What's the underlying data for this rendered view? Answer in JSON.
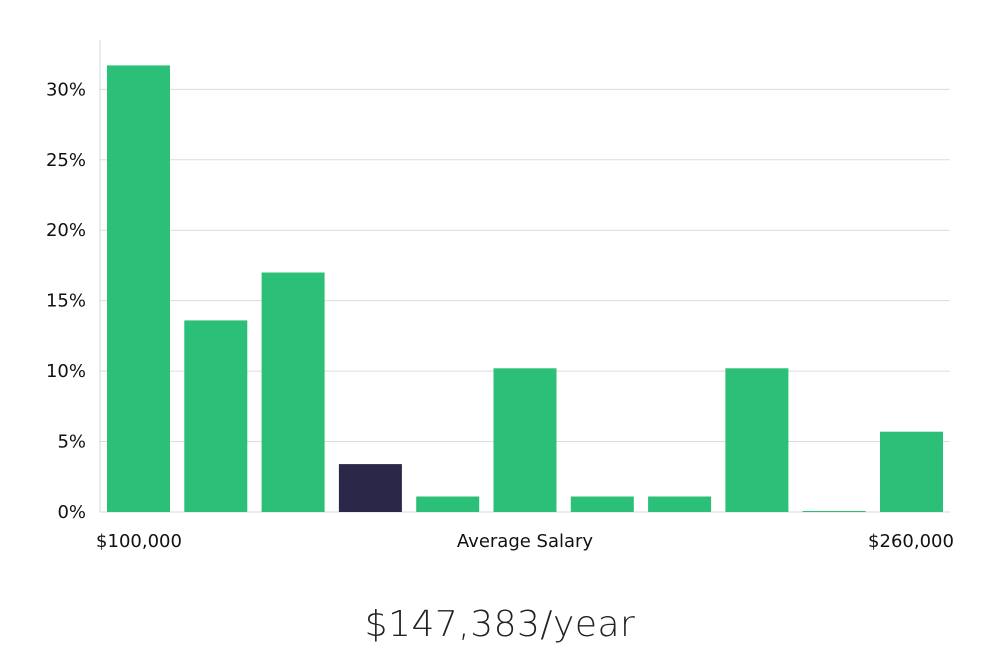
{
  "colors": {
    "bar": "#2bbf78",
    "highlight": "#2b2748",
    "grid": "#dcdcdc",
    "axis": "#d9d9d9",
    "text": "#111111"
  },
  "chart_data": {
    "type": "bar",
    "y_tick_labels": [
      "0%",
      "5%",
      "10%",
      "15%",
      "20%",
      "25%",
      "30%"
    ],
    "y_ticks": [
      0,
      5,
      10,
      15,
      20,
      25,
      30
    ],
    "ylim": [
      0,
      33.5
    ],
    "grid": true,
    "values": [
      31.7,
      13.6,
      17.0,
      3.4,
      1.1,
      10.2,
      1.1,
      1.1,
      10.2,
      0.05,
      5.7
    ],
    "highlight_index": 3,
    "x_start_label": "$100,000",
    "x_middle_label": "Average Salary",
    "x_end_label": "$260,000"
  },
  "salary": {
    "display": "$147,383/year"
  }
}
